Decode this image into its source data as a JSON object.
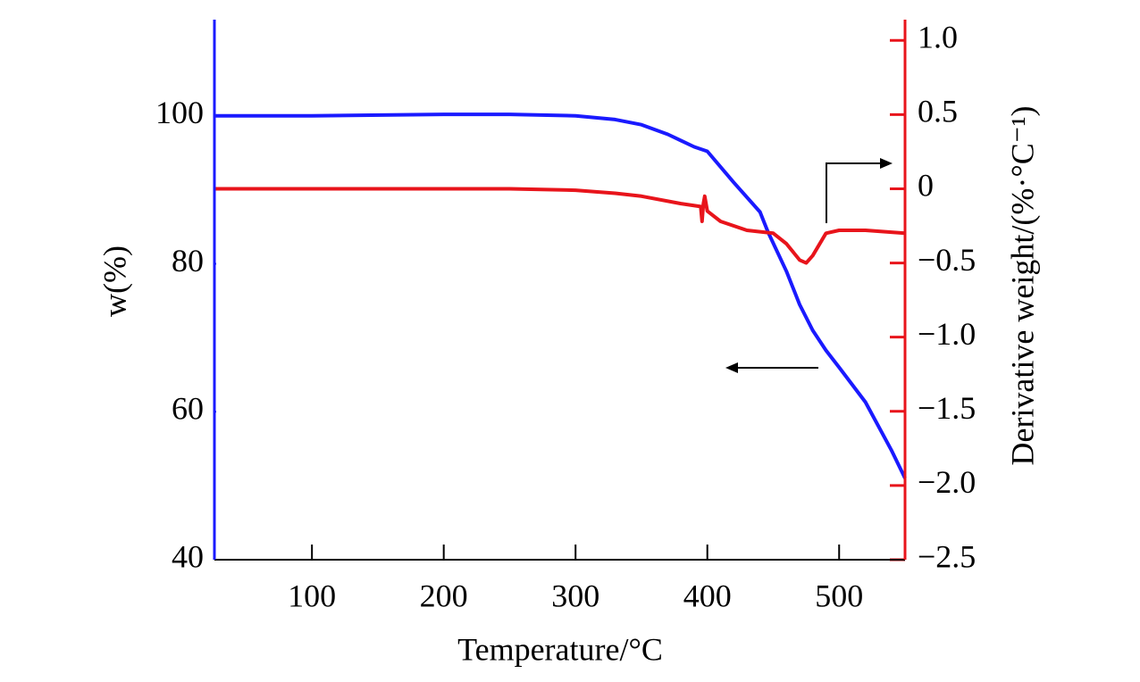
{
  "chart_data": {
    "type": "line",
    "x_label": "Temperature/°C",
    "y_label": "w(%)",
    "y2_label": "Derivative weight/(%·°C⁻¹)",
    "xlim": [
      26,
      550
    ],
    "xticks": [
      100,
      200,
      300,
      400,
      500
    ],
    "ylim": [
      40,
      113
    ],
    "yticks": [
      40,
      60,
      80,
      100
    ],
    "y2lim": [
      -2.5,
      1.14
    ],
    "y2ticks": [
      {
        "value": 1.0,
        "label": "1.0"
      },
      {
        "value": 0.5,
        "label": "0.5"
      },
      0,
      {
        "value": -0.5,
        "label": "−0.5"
      },
      {
        "value": -1.0,
        "label": "−1.0"
      },
      {
        "value": -1.5,
        "label": "−1.5"
      },
      {
        "value": -2.0,
        "label": "−2.0"
      },
      {
        "value": -2.5,
        "label": "−2.5"
      }
    ],
    "y_color": "#1a1aff",
    "y2_color": "#e8141b",
    "series": [
      {
        "color": "#1a1aff",
        "axis": "y",
        "x": [
          26,
          100,
          200,
          250,
          300,
          330,
          350,
          370,
          390,
          400,
          420,
          440,
          446,
          460,
          470,
          480,
          490,
          500,
          520,
          540,
          550
        ],
        "values": [
          100,
          100,
          100.2,
          100.2,
          100,
          99.5,
          98.8,
          97.5,
          95.8,
          95.2,
          91,
          87,
          84.3,
          79,
          74.5,
          71,
          68.3,
          66,
          61.3,
          54.7,
          51
        ]
      },
      {
        "color": "#e8141b",
        "axis": "y2",
        "x": [
          26,
          100,
          200,
          250,
          300,
          330,
          350,
          380,
          395,
          396,
          397,
          398,
          400,
          410,
          430,
          450,
          460,
          470,
          475,
          480,
          490,
          500,
          520,
          550
        ],
        "values": [
          0,
          0,
          0,
          0,
          -0.01,
          -0.03,
          -0.05,
          -0.1,
          -0.12,
          -0.22,
          -0.1,
          -0.05,
          -0.15,
          -0.22,
          -0.28,
          -0.3,
          -0.37,
          -0.48,
          -0.5,
          -0.45,
          -0.3,
          -0.28,
          -0.28,
          -0.3
        ]
      }
    ]
  }
}
